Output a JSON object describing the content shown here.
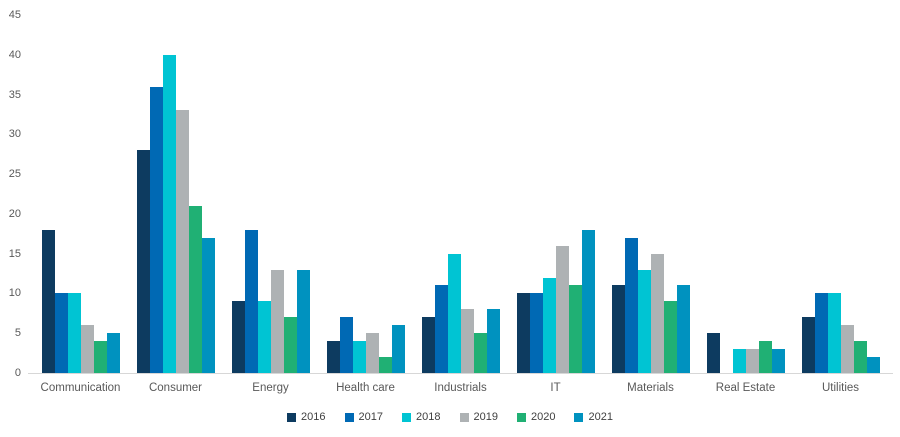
{
  "chart_data": {
    "type": "bar",
    "title": "",
    "xlabel": "",
    "ylabel": "",
    "categories": [
      "Communication",
      "Consumer",
      "Energy",
      "Health care",
      "Industrials",
      "IT",
      "Materials",
      "Real Estate",
      "Utilities"
    ],
    "series": [
      {
        "name": "2016",
        "color": "#0d3b60",
        "values": [
          18,
          28,
          9,
          4,
          7,
          10,
          11,
          5,
          7
        ]
      },
      {
        "name": "2017",
        "color": "#0069b4",
        "values": [
          10,
          36,
          18,
          7,
          11,
          10,
          17,
          0,
          10
        ]
      },
      {
        "name": "2018",
        "color": "#00c4d3",
        "values": [
          10,
          40,
          9,
          4,
          15,
          12,
          13,
          3,
          10
        ]
      },
      {
        "name": "2019",
        "color": "#aeb2b4",
        "values": [
          6,
          33,
          13,
          5,
          8,
          16,
          15,
          3,
          6
        ]
      },
      {
        "name": "2020",
        "color": "#20b074",
        "values": [
          4,
          21,
          7,
          2,
          5,
          11,
          9,
          4,
          4
        ]
      },
      {
        "name": "2021",
        "color": "#0092bf",
        "values": [
          5,
          17,
          13,
          6,
          8,
          18,
          11,
          3,
          2
        ]
      }
    ],
    "ylim": [
      0,
      45
    ],
    "yticks": [
      0,
      5,
      10,
      15,
      20,
      25,
      30,
      35,
      40,
      45
    ],
    "grid": false,
    "legend_position": "bottom",
    "colors": {
      "axis_line": "#d7d7d7",
      "axis_label": "#595959",
      "legend_text": "#404040",
      "background": "#ffffff"
    }
  }
}
